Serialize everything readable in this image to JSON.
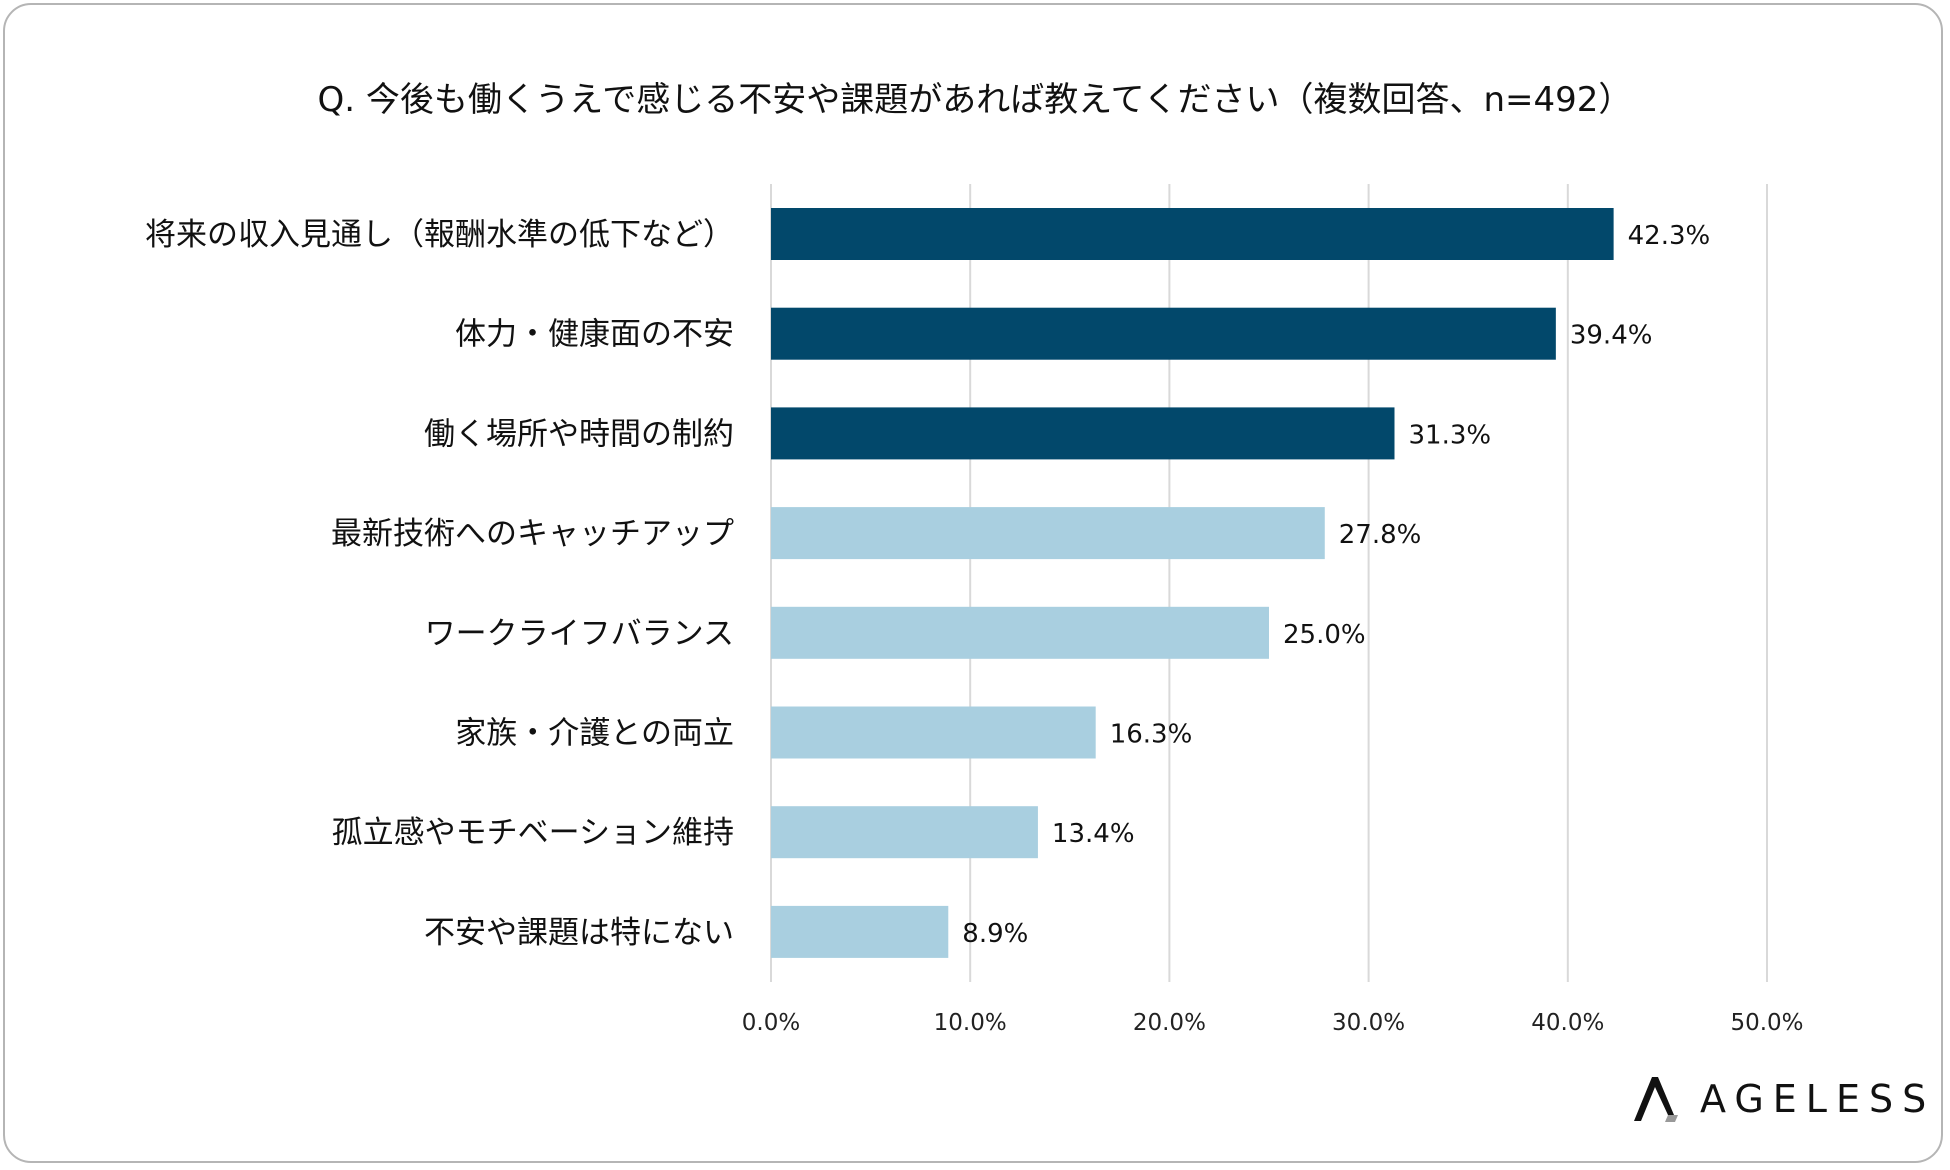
{
  "chart_data": {
    "type": "bar",
    "orientation": "horizontal",
    "title": "Q. 今後も働くうえで感じる不安や課題があれば教えてください（複数回答、n=492）",
    "categories": [
      "将来の収入見通し（報酬水準の低下など）",
      "体力・健康面の不安",
      "働く場所や時間の制約",
      "最新技術へのキャッチアップ",
      "ワークライフバランス",
      "家族・介護との両立",
      "孤立感やモチベーション維持",
      "不安や課題は特にない"
    ],
    "values": [
      42.3,
      39.4,
      31.3,
      27.8,
      25.0,
      16.3,
      13.4,
      8.9
    ],
    "value_labels": [
      "42.3%",
      "39.4%",
      "31.3%",
      "27.8%",
      "25.0%",
      "16.3%",
      "13.4%",
      "8.9%"
    ],
    "highlighted_top": 3,
    "xlim": [
      0,
      50
    ],
    "x_ticks": [
      0,
      10,
      20,
      30,
      40,
      50
    ],
    "x_tick_labels": [
      "0.0%",
      "10.0%",
      "20.0%",
      "30.0%",
      "40.0%",
      "50.0%"
    ],
    "grid": "vertical",
    "colors": {
      "highlight": "#02486b",
      "normal": "#a9cfe0",
      "grid": "#d9d9d9"
    }
  },
  "logo": {
    "text": "AGELESS"
  }
}
